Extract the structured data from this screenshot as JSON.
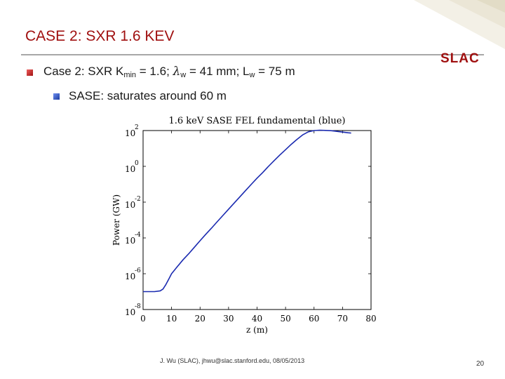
{
  "slide": {
    "title": "CASE 2: SXR 1.6 KEV",
    "logo_text": "SLAC",
    "accent_color": "#a01010",
    "bullet1": {
      "prefix": "Case 2: SXR K",
      "k_sub": "min",
      "mid": " = 1.6; ",
      "lambda": "λ",
      "lambda_sub": "w",
      "mid2": " = 41 mm; L",
      "l_sub": "w",
      "suffix": " = 75 m"
    },
    "bullet2": "SASE: saturates around 60 m",
    "footer": "J. Wu (SLAC), jhwu@slac.stanford.edu, 08/05/2013",
    "page_number": "20"
  },
  "chart_data": {
    "type": "line",
    "title": "1.6 keV SASE FEL fundamental (blue)",
    "xlabel": "z (m)",
    "ylabel": "Power (GW)",
    "xlim": [
      0,
      80
    ],
    "ylim_log10": [
      -8,
      2
    ],
    "y_scale": "log",
    "x_ticks": [
      "0",
      "10",
      "20",
      "30",
      "40",
      "50",
      "60",
      "70",
      "80"
    ],
    "y_tick_exponents": [
      "2",
      "0",
      "-2",
      "-4",
      "-6",
      "-8"
    ],
    "series": [
      {
        "color": "#1a2ab0",
        "x": [
          0,
          2,
          4,
          6,
          7,
          8,
          9,
          10,
          12,
          14,
          16,
          18,
          20,
          22,
          24,
          26,
          28,
          30,
          32,
          34,
          36,
          38,
          40,
          42,
          44,
          46,
          48,
          50,
          52,
          54,
          56,
          58,
          60,
          62,
          64,
          66,
          68,
          70,
          72,
          73
        ],
        "y": [
          1e-07,
          1e-07,
          1e-07,
          1.1e-07,
          1.4e-07,
          2.5e-07,
          5e-07,
          1e-06,
          2.5e-06,
          6e-06,
          1.3e-05,
          3e-05,
          7e-05,
          0.00016,
          0.00035,
          0.0008,
          0.0018,
          0.004,
          0.009,
          0.02,
          0.045,
          0.1,
          0.22,
          0.45,
          1,
          2.1,
          4.3,
          8.5,
          17,
          32,
          57,
          85,
          100,
          105,
          102,
          98,
          90,
          82,
          75,
          72
        ]
      }
    ]
  }
}
